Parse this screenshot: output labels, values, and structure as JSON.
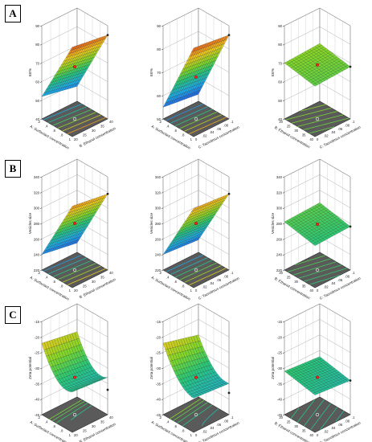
{
  "panels": [
    {
      "label": "A",
      "response": "EE%"
    },
    {
      "label": "B",
      "response": "Vesicles size"
    },
    {
      "label": "C",
      "response": "Zeta potential"
    }
  ],
  "factors": {
    "A": "A: Surfactant concentration",
    "B": "B: Ethanol concentration",
    "C": "C: Tacrolimus concentration"
  },
  "chart_data": [
    {
      "type": "surface3d",
      "panel": "A",
      "col": 1,
      "zlabel": "EE%",
      "xlabel": "A: Surfactant concentration",
      "ylabel": "B: Ethanol concentration",
      "xlim": [
        0.2,
        1
      ],
      "ylim": [
        20,
        40
      ],
      "zlim": [
        40,
        90
      ],
      "zticks": [
        40,
        50,
        60,
        70,
        80,
        90
      ],
      "xticks": [
        0.2,
        0.4,
        0.6,
        0.8,
        1
      ],
      "yticks": [
        20,
        25,
        30,
        35,
        40
      ],
      "corners": {
        "x0y0": 52,
        "x1y0": 88,
        "x0y1": 48,
        "x1y1": 85
      },
      "design_point": 68
    },
    {
      "type": "surface3d",
      "panel": "A",
      "col": 2,
      "zlabel": "EE%",
      "xlabel": "A: Surfactant concentration",
      "ylabel": "C: Tacrolimus concentration",
      "xlim": [
        0.2,
        1
      ],
      "ylim": [
        0,
        0.1
      ],
      "zlim": [
        50,
        90
      ],
      "zticks": [
        50,
        60,
        70,
        80,
        90
      ],
      "xticks": [
        0.2,
        0.4,
        0.6,
        0.8,
        1
      ],
      "yticks": [
        0,
        0.02,
        0.04,
        0.06,
        0.08,
        0.1
      ],
      "corners": {
        "x0y0": 55,
        "x1y0": 88,
        "x0y1": 53,
        "x1y1": 86
      },
      "design_point": 68
    },
    {
      "type": "surface3d",
      "panel": "A",
      "col": 3,
      "zlabel": "EE%",
      "xlabel": "B: Ethanol concentration",
      "ylabel": "C: Tacrolimus concentration",
      "xlim": [
        20,
        40
      ],
      "ylim": [
        0,
        0.1
      ],
      "zlim": [
        40,
        90
      ],
      "zticks": [
        40,
        50,
        60,
        70,
        80,
        90
      ],
      "xticks": [
        20,
        25,
        30,
        35,
        40
      ],
      "yticks": [
        0,
        0.02,
        0.04,
        0.06,
        0.08,
        0.1
      ],
      "corners": {
        "x0y0": 70,
        "x1y0": 67,
        "x0y1": 71,
        "x1y1": 68
      },
      "design_point": 69
    },
    {
      "type": "surface3d",
      "panel": "B",
      "col": 1,
      "zlabel": "Vesicles size",
      "xlabel": "A: Surfactant concentration",
      "ylabel": "B: Ethanol concentration",
      "xlim": [
        0.2,
        1
      ],
      "ylim": [
        20,
        40
      ],
      "zlim": [
        220,
        340
      ],
      "zticks": [
        220,
        240,
        260,
        280,
        300,
        320,
        340
      ],
      "xticks": [
        0.2,
        0.4,
        0.6,
        0.8,
        1
      ],
      "yticks": [
        20,
        25,
        30,
        35,
        40
      ],
      "corners": {
        "x0y0": 240,
        "x1y0": 325,
        "x0y1": 232,
        "x1y1": 318
      },
      "design_point": 280
    },
    {
      "type": "surface3d",
      "panel": "B",
      "col": 2,
      "zlabel": "Vesicles size",
      "xlabel": "A: Surfactant concentration",
      "ylabel": "C: Tacrolimus concentration",
      "xlim": [
        0.2,
        1
      ],
      "ylim": [
        0,
        0.1
      ],
      "zlim": [
        220,
        340
      ],
      "zticks": [
        220,
        240,
        260,
        280,
        300,
        320,
        340
      ],
      "xticks": [
        0.2,
        0.4,
        0.6,
        0.8,
        1
      ],
      "yticks": [
        0,
        0.02,
        0.04,
        0.06,
        0.08,
        0.1
      ],
      "corners": {
        "x0y0": 240,
        "x1y0": 322,
        "x0y1": 236,
        "x1y1": 318
      },
      "design_point": 280
    },
    {
      "type": "surface3d",
      "panel": "B",
      "col": 3,
      "zlabel": "Vesicles size",
      "xlabel": "B: Ethanol concentration",
      "ylabel": "C: Tacrolimus concentration",
      "xlim": [
        20,
        40
      ],
      "ylim": [
        0,
        0.1
      ],
      "zlim": [
        220,
        340
      ],
      "zticks": [
        220,
        240,
        260,
        280,
        300,
        320,
        340
      ],
      "xticks": [
        20,
        25,
        30,
        35,
        40
      ],
      "yticks": [
        0,
        0.02,
        0.04,
        0.06,
        0.08,
        0.1
      ],
      "corners": {
        "x0y0": 282,
        "x1y0": 274,
        "x0y1": 284,
        "x1y1": 276
      },
      "design_point": 279
    },
    {
      "type": "surface3d",
      "panel": "C",
      "col": 1,
      "zlabel": "Zeta potential",
      "xlabel": "A: Surfactant concentration",
      "ylabel": "B: Ethanol concentration",
      "xlim": [
        0.2,
        1
      ],
      "ylim": [
        20,
        40
      ],
      "zlim": [
        -45,
        -15
      ],
      "zticks": [
        -45,
        -40,
        -35,
        -30,
        -25,
        -20,
        -15
      ],
      "xticks": [
        0.2,
        0.4,
        0.6,
        0.8,
        1
      ],
      "yticks": [
        20,
        25,
        30,
        35,
        40
      ],
      "corners": {
        "x0y0": -26,
        "x1y0": -36,
        "x0y1": -28,
        "x1y1": -37
      },
      "curvature": 4,
      "design_point": -33
    },
    {
      "type": "surface3d",
      "panel": "C",
      "col": 2,
      "zlabel": "Zeta potential",
      "xlabel": "A: Surfactant concentration",
      "ylabel": "C: Tacrolimus concentration",
      "xlim": [
        0.2,
        1
      ],
      "ylim": [
        0,
        0.1
      ],
      "zlim": [
        -45,
        -15
      ],
      "zticks": [
        -45,
        -40,
        -35,
        -30,
        -25,
        -20,
        -15
      ],
      "xticks": [
        0.2,
        0.4,
        0.6,
        0.8,
        1
      ],
      "yticks": [
        0,
        0.02,
        0.04,
        0.06,
        0.08,
        0.1
      ],
      "corners": {
        "x0y0": -25,
        "x1y0": -37,
        "x0y1": -28,
        "x1y1": -38
      },
      "curvature": 3,
      "design_point": -33
    },
    {
      "type": "surface3d",
      "panel": "C",
      "col": 3,
      "zlabel": "Zeta potential",
      "xlabel": "B: Ethanol concentration",
      "ylabel": "C: Tacrolimus concentration",
      "xlim": [
        20,
        40
      ],
      "ylim": [
        0,
        0.1
      ],
      "zlim": [
        -45,
        -15
      ],
      "zticks": [
        -45,
        -40,
        -35,
        -30,
        -25,
        -20,
        -15
      ],
      "xticks": [
        20,
        25,
        30,
        35,
        40
      ],
      "yticks": [
        0,
        0.02,
        0.04,
        0.06,
        0.08,
        0.1
      ],
      "corners": {
        "x0y0": -31,
        "x1y0": -33,
        "x0y1": -32,
        "x1y1": -34
      },
      "design_point": -33
    }
  ]
}
